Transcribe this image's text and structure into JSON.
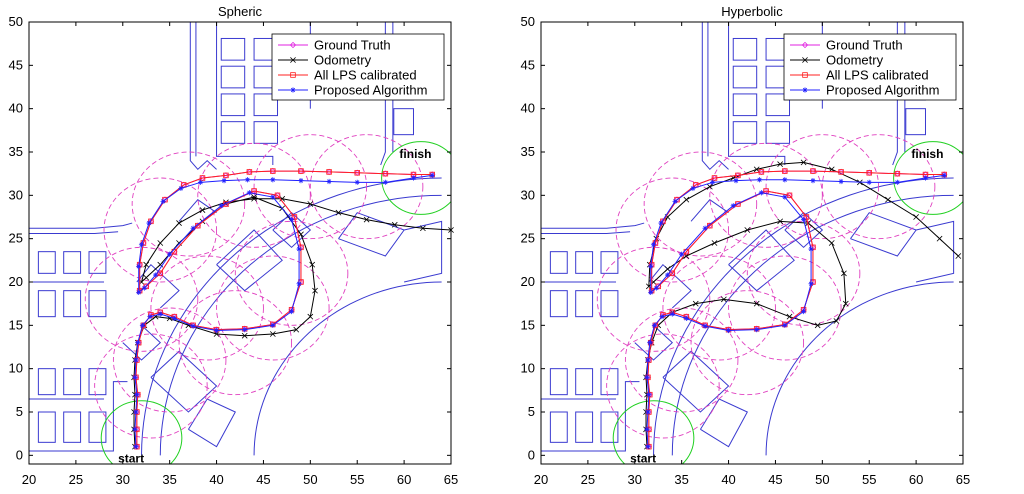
{
  "colors": {
    "ground_truth": "#e020e0",
    "odometry": "#000000",
    "all_lps": "#ff2020",
    "proposed": "#2020ff",
    "floorplan": "#3a3ad0",
    "anchor_circle": "#e040c0",
    "endpoint_circle": "#20d020"
  },
  "chart_data": [
    {
      "type": "line",
      "title": "Spheric",
      "xlabel": "",
      "ylabel": "",
      "xlim": [
        20,
        65
      ],
      "ylim": [
        -1,
        50
      ],
      "xticks": [
        20,
        25,
        30,
        35,
        40,
        45,
        50,
        55,
        60,
        65
      ],
      "yticks": [
        0,
        5,
        10,
        15,
        20,
        25,
        30,
        35,
        40,
        45,
        50
      ],
      "grid": false,
      "legend_position": "top-right",
      "annotations": [
        {
          "text": "finish",
          "x": 59.5,
          "y": 34.3
        },
        {
          "text": "start",
          "x": 29.5,
          "y": -0.8
        }
      ],
      "series": [
        {
          "name": "Ground Truth",
          "marker": "diamond",
          "x": [
            31.5,
            31.5,
            31.5,
            31.6,
            31.4,
            31.5,
            31.7,
            32.2,
            33.0,
            34.0,
            35.5,
            37.5,
            40.0,
            43.0,
            46.0,
            48.0,
            49.0,
            49.0,
            48.3,
            46.5,
            44.0,
            41.0,
            38.0,
            35.5,
            34.0,
            32.5,
            31.8,
            31.8,
            32.2,
            33.0,
            34.5,
            36.5,
            38.5,
            41.0,
            43.5,
            46.0,
            49.0,
            52.0,
            55.0,
            58.0,
            61.0,
            63.0
          ],
          "y": [
            1.0,
            3.0,
            5.0,
            7.0,
            9.0,
            11.0,
            13.0,
            15.0,
            16.2,
            16.5,
            16.0,
            15.0,
            14.5,
            14.6,
            15.1,
            16.8,
            20.0,
            24.0,
            27.5,
            30.0,
            30.5,
            29.0,
            26.5,
            23.5,
            21.0,
            19.5,
            19.0,
            22.0,
            24.5,
            27.0,
            29.5,
            31.2,
            32.0,
            32.3,
            32.7,
            32.8,
            32.8,
            32.7,
            32.6,
            32.5,
            32.4,
            32.4
          ]
        },
        {
          "name": "Odometry",
          "marker": "x",
          "x": [
            31.3,
            31.2,
            31.2,
            31.3,
            31.2,
            31.3,
            31.6,
            32.3,
            33.5,
            35.0,
            37.0,
            40.0,
            43.0,
            46.0,
            48.5,
            50.0,
            50.5,
            50.2,
            49.0,
            47.0,
            44.0,
            41.0,
            38.5,
            36.0,
            34.0,
            32.5,
            32.0,
            32.5,
            34.0,
            36.0,
            38.5,
            41.0,
            44.0,
            47.0,
            50.0,
            53.0,
            56.0,
            59.0,
            62.0,
            65.0
          ],
          "y": [
            1.0,
            3.0,
            5.0,
            7.0,
            9.0,
            11.0,
            13.0,
            15.0,
            16.0,
            15.8,
            15.0,
            14.0,
            13.8,
            14.0,
            14.5,
            16.0,
            19.0,
            22.0,
            25.5,
            28.5,
            29.8,
            29.0,
            27.0,
            24.5,
            22.0,
            20.5,
            20.0,
            22.0,
            24.5,
            26.8,
            28.3,
            29.2,
            29.6,
            29.6,
            29.0,
            28.0,
            27.2,
            26.6,
            26.2,
            26.0
          ]
        },
        {
          "name": "All LPS calibrated",
          "marker": "square",
          "x": [
            31.5,
            31.5,
            31.5,
            31.6,
            31.4,
            31.5,
            31.7,
            32.2,
            33.0,
            34.0,
            35.5,
            37.5,
            40.0,
            43.0,
            46.0,
            48.0,
            49.0,
            49.0,
            48.3,
            46.5,
            44.0,
            41.0,
            38.0,
            35.5,
            34.0,
            32.5,
            31.8,
            31.8,
            32.2,
            33.0,
            34.5,
            36.5,
            38.5,
            41.0,
            43.5,
            46.0,
            49.0,
            52.0,
            55.0,
            58.0,
            61.0,
            63.0
          ],
          "y": [
            1.0,
            3.0,
            5.0,
            7.0,
            9.0,
            11.0,
            13.0,
            15.0,
            16.2,
            16.5,
            16.0,
            15.0,
            14.5,
            14.6,
            15.1,
            16.8,
            20.0,
            24.0,
            27.5,
            30.0,
            30.5,
            29.0,
            26.5,
            23.5,
            21.0,
            19.5,
            19.0,
            22.0,
            24.5,
            27.0,
            29.5,
            31.2,
            32.0,
            32.3,
            32.7,
            32.8,
            32.8,
            32.7,
            32.6,
            32.5,
            32.4,
            32.4
          ]
        },
        {
          "name": "Proposed Algorithm",
          "marker": "star",
          "x": [
            31.4,
            31.3,
            31.4,
            31.5,
            31.3,
            31.4,
            31.6,
            32.1,
            32.9,
            34.0,
            35.5,
            37.5,
            40.0,
            43.0,
            46.0,
            48.0,
            48.8,
            48.8,
            48.0,
            46.0,
            43.5,
            40.5,
            37.5,
            35.0,
            33.5,
            32.3,
            31.7,
            31.7,
            32.0,
            32.8,
            34.3,
            36.2,
            38.3,
            40.8,
            43.3,
            46.0,
            49.0,
            52.0,
            55.0,
            58.0,
            61.0,
            63.0
          ],
          "y": [
            1.0,
            3.0,
            5.0,
            7.0,
            9.0,
            11.0,
            13.0,
            15.0,
            16.0,
            16.3,
            15.8,
            14.9,
            14.4,
            14.5,
            15.0,
            16.6,
            19.8,
            23.8,
            27.2,
            29.8,
            30.3,
            28.8,
            26.2,
            23.2,
            20.8,
            19.3,
            18.8,
            21.8,
            24.3,
            26.8,
            29.3,
            30.8,
            31.5,
            31.7,
            31.8,
            31.8,
            31.7,
            31.6,
            31.5,
            31.5,
            32.0,
            32.3
          ]
        }
      ]
    },
    {
      "type": "line",
      "title": "Hyperbolic",
      "xlabel": "",
      "ylabel": "",
      "xlim": [
        20,
        65
      ],
      "ylim": [
        -1,
        50
      ],
      "xticks": [
        20,
        25,
        30,
        35,
        40,
        45,
        50,
        55,
        60,
        65
      ],
      "yticks": [
        0,
        5,
        10,
        15,
        20,
        25,
        30,
        35,
        40,
        45,
        50
      ],
      "grid": false,
      "legend_position": "top-right",
      "annotations": [
        {
          "text": "finish",
          "x": 59.5,
          "y": 34.3
        },
        {
          "text": "start",
          "x": 29.5,
          "y": -0.8
        }
      ],
      "series": [
        {
          "name": "Ground Truth",
          "marker": "diamond",
          "x": [
            31.5,
            31.5,
            31.5,
            31.6,
            31.4,
            31.5,
            31.7,
            32.2,
            33.0,
            34.0,
            35.5,
            37.5,
            40.0,
            43.0,
            46.0,
            48.0,
            49.0,
            49.0,
            48.3,
            46.5,
            44.0,
            41.0,
            38.0,
            35.5,
            34.0,
            32.5,
            31.8,
            31.8,
            32.2,
            33.0,
            34.5,
            36.5,
            38.5,
            41.0,
            43.5,
            46.0,
            49.0,
            52.0,
            55.0,
            58.0,
            61.0,
            63.0
          ],
          "y": [
            1.0,
            3.0,
            5.0,
            7.0,
            9.0,
            11.0,
            13.0,
            15.0,
            16.2,
            16.5,
            16.0,
            15.0,
            14.5,
            14.6,
            15.1,
            16.8,
            20.0,
            24.0,
            27.5,
            30.0,
            30.5,
            29.0,
            26.5,
            23.5,
            21.0,
            19.5,
            19.0,
            22.0,
            24.5,
            27.0,
            29.5,
            31.2,
            32.0,
            32.3,
            32.7,
            32.8,
            32.8,
            32.7,
            32.6,
            32.5,
            32.4,
            32.4
          ]
        },
        {
          "name": "Odometry",
          "marker": "x",
          "x": [
            31.3,
            31.2,
            31.2,
            31.3,
            31.2,
            31.4,
            31.8,
            32.5,
            34.0,
            36.5,
            39.5,
            43.0,
            46.5,
            49.5,
            51.5,
            52.5,
            52.3,
            51.0,
            48.5,
            45.5,
            42.0,
            38.5,
            35.5,
            33.5,
            32.0,
            31.5,
            31.6,
            32.3,
            33.5,
            35.5,
            38.0,
            40.5,
            43.0,
            45.5,
            48.0,
            51.0,
            54.0,
            57.0,
            60.0,
            62.5,
            64.5
          ],
          "y": [
            1.0,
            3.0,
            5.0,
            7.0,
            9.0,
            11.0,
            13.0,
            15.0,
            16.5,
            17.5,
            18.0,
            17.5,
            16.0,
            15.0,
            15.5,
            17.5,
            21.0,
            24.5,
            26.8,
            27.0,
            26.0,
            24.5,
            23.0,
            21.5,
            20.0,
            19.5,
            22.0,
            25.0,
            27.5,
            29.5,
            31.0,
            32.0,
            33.0,
            33.6,
            33.8,
            33.0,
            31.5,
            29.5,
            27.5,
            25.0,
            23.0
          ]
        },
        {
          "name": "All LPS calibrated",
          "marker": "square",
          "x": [
            31.5,
            31.5,
            31.5,
            31.6,
            31.4,
            31.5,
            31.7,
            32.2,
            33.0,
            34.0,
            35.5,
            37.5,
            40.0,
            43.0,
            46.0,
            48.0,
            49.0,
            49.0,
            48.3,
            46.5,
            44.0,
            41.0,
            38.0,
            35.5,
            34.0,
            32.5,
            31.8,
            31.8,
            32.2,
            33.0,
            34.5,
            36.5,
            38.5,
            41.0,
            43.5,
            46.0,
            49.0,
            52.0,
            55.0,
            58.0,
            61.0,
            63.0
          ],
          "y": [
            1.0,
            3.0,
            5.0,
            7.0,
            9.0,
            11.0,
            13.0,
            15.0,
            16.2,
            16.5,
            16.0,
            15.0,
            14.5,
            14.6,
            15.1,
            16.8,
            20.0,
            24.0,
            27.5,
            30.0,
            30.5,
            29.0,
            26.5,
            23.5,
            21.0,
            19.5,
            19.0,
            22.0,
            24.5,
            27.0,
            29.5,
            31.2,
            32.0,
            32.3,
            32.7,
            32.8,
            32.8,
            32.7,
            32.6,
            32.5,
            32.4,
            32.4
          ]
        },
        {
          "name": "Proposed Algorithm",
          "marker": "star",
          "x": [
            31.4,
            31.3,
            31.4,
            31.5,
            31.3,
            31.4,
            31.6,
            32.1,
            32.9,
            34.0,
            35.5,
            37.5,
            40.0,
            43.0,
            46.0,
            48.0,
            48.8,
            48.8,
            48.0,
            46.0,
            43.5,
            40.5,
            37.5,
            35.0,
            33.5,
            32.3,
            31.7,
            31.7,
            32.0,
            32.8,
            34.3,
            36.2,
            38.3,
            40.8,
            43.3,
            46.0,
            49.0,
            52.0,
            55.0,
            58.0,
            61.0,
            63.0
          ],
          "y": [
            1.0,
            3.0,
            5.0,
            7.0,
            9.0,
            11.0,
            13.0,
            15.0,
            16.0,
            16.3,
            15.8,
            14.9,
            14.4,
            14.5,
            15.0,
            16.6,
            19.8,
            23.8,
            27.2,
            29.8,
            30.3,
            28.8,
            26.2,
            23.2,
            20.8,
            19.3,
            18.8,
            21.8,
            24.3,
            26.8,
            29.3,
            30.8,
            31.5,
            31.7,
            31.8,
            31.8,
            31.7,
            31.6,
            31.5,
            31.5,
            32.0,
            32.3
          ]
        }
      ]
    }
  ]
}
